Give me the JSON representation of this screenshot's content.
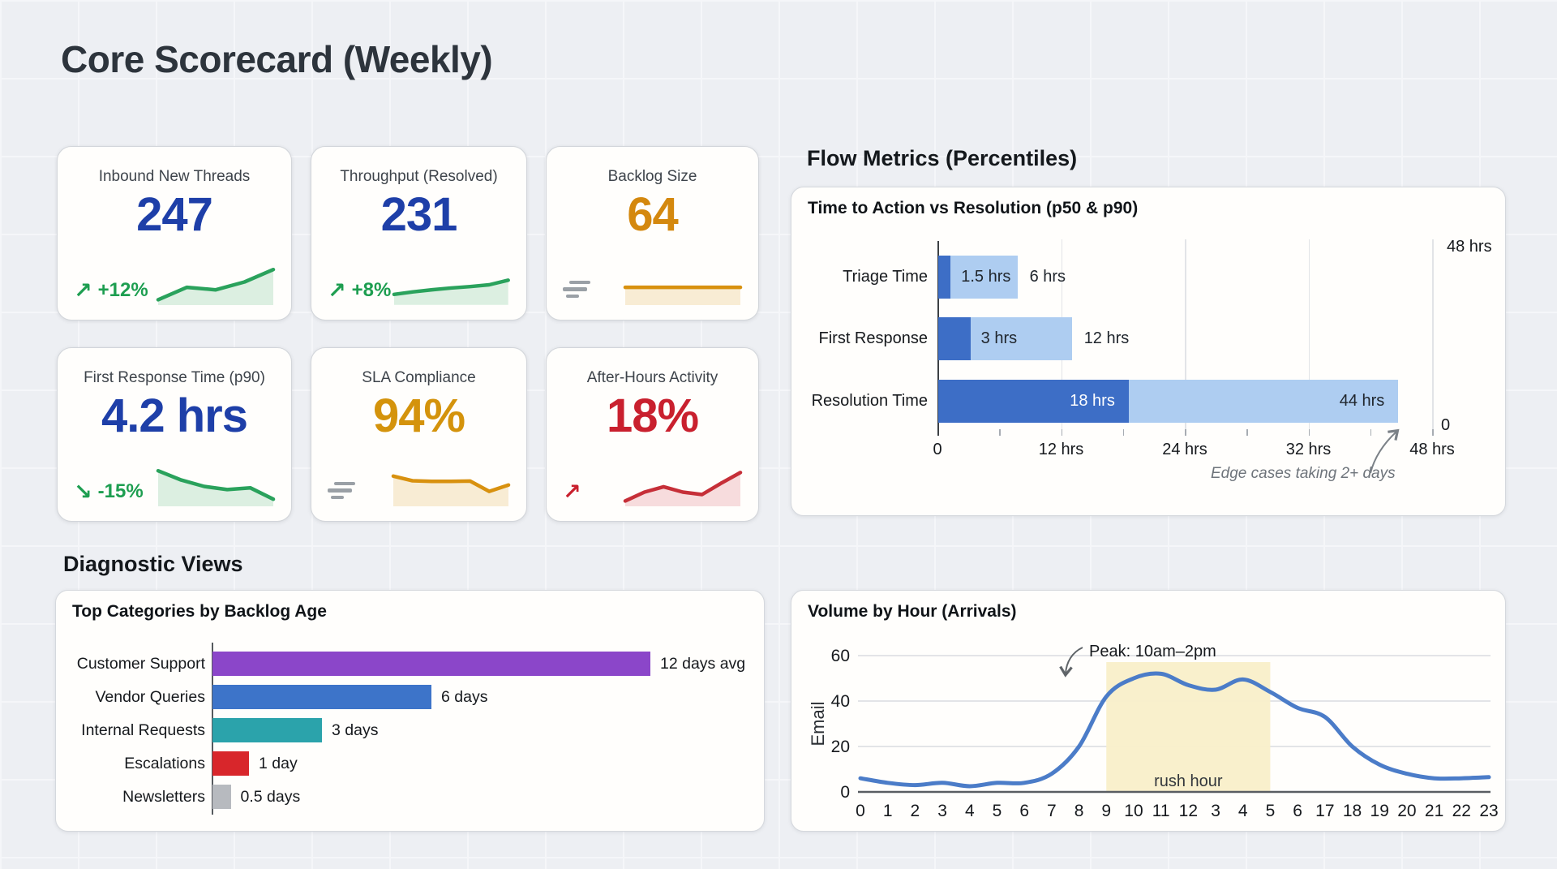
{
  "page": {
    "title": "Core Scorecard (Weekly)"
  },
  "sections": {
    "flow_heading": "Flow Metrics (Percentiles)",
    "diagnostic_heading": "Diagnostic Views"
  },
  "kpi_cards": [
    {
      "label": "Inbound New Threads",
      "value": "247",
      "value_color": "#1e3fa8",
      "trend": {
        "type": "up",
        "icon_char": "↗",
        "label": "+12%",
        "color": "#1d9e50"
      },
      "spark": {
        "color": "#2aa25c",
        "fill": "#dcefe1",
        "values": [
          1.5,
          5,
          4.3,
          6.5,
          10
        ]
      }
    },
    {
      "label": "Throughput (Resolved)",
      "value": "231",
      "value_color": "#1e3fa8",
      "trend": {
        "type": "up",
        "icon_char": "↗",
        "label": "+8%",
        "color": "#1d9e50"
      },
      "spark": {
        "color": "#2aa25c",
        "fill": "#dcefe1",
        "values": [
          3,
          3.7,
          4.3,
          4.8,
          5.2,
          5.7,
          7
        ]
      }
    },
    {
      "label": "Backlog Size",
      "value": "64",
      "value_color": "#d4880e",
      "trend": {
        "type": "flat",
        "icon_char": "",
        "label": "",
        "color": "#9aa0a6"
      },
      "spark": {
        "color": "#d8910f",
        "fill": "#f8ecd4",
        "values": [
          5,
          5,
          5,
          5,
          5
        ]
      }
    },
    {
      "label": "First Response Time (p90)",
      "value": "4.2 hrs",
      "value_color": "#1e3fa8",
      "trend": {
        "type": "down",
        "icon_char": "↘",
        "label": "-15%",
        "color": "#1d9e50"
      },
      "spark": {
        "color": "#2aa25c",
        "fill": "#dcefe1",
        "values": [
          10,
          7.4,
          5.6,
          4.7,
          5.2,
          2
        ]
      }
    },
    {
      "label": "SLA Compliance",
      "value": "94%",
      "value_color": "#d4930c",
      "trend": {
        "type": "flat",
        "icon_char": "",
        "label": "",
        "color": "#9aa0a6"
      },
      "spark": {
        "color": "#d8910f",
        "fill": "#f8ecd4",
        "values": [
          8.5,
          7.2,
          7,
          7,
          7.1,
          4.2,
          6
        ]
      }
    },
    {
      "label": "After-Hours Activity",
      "value": "18%",
      "value_color": "#c9202e",
      "trend": {
        "type": "up",
        "icon_char": "↗",
        "label": "",
        "color": "#c9202e"
      },
      "spark": {
        "color": "#c62f38",
        "fill": "#f7dcdd",
        "values": [
          1.5,
          4,
          5.5,
          4,
          3.3,
          6.5,
          9.5
        ]
      }
    }
  ],
  "chart_data": [
    {
      "id": "flow_percentiles",
      "type": "bar",
      "orientation": "horizontal",
      "title": "Time to Action vs Resolution (p50 & p90)",
      "categories": [
        "Triage Time",
        "First Response",
        "Resolution Time"
      ],
      "series": [
        {
          "name": "p50",
          "values_hrs": [
            1.5,
            3,
            18
          ],
          "color": "#3d6ec6"
        },
        {
          "name": "p90",
          "values_hrs": [
            6,
            12,
            44
          ],
          "color": "#aecdf1"
        }
      ],
      "bar_pcts": {
        "p50": [
          2.5,
          6.5,
          38.5
        ],
        "p90": [
          16,
          27,
          93
        ]
      },
      "value_labels": {
        "p50": [
          "1.5 hrs",
          "3 hrs",
          "18 hrs"
        ],
        "p90": [
          "6 hrs",
          "12 hrs",
          "44 hrs"
        ]
      },
      "x_ticks": [
        "0",
        "12 hrs",
        "24 hrs",
        "32 hrs",
        "48 hrs"
      ],
      "extra_labels": {
        "top_right": "48 hrs",
        "right_zero": "0"
      },
      "annotation": "Edge cases taking 2+ days",
      "xlim_hrs": [
        0,
        48
      ],
      "grid": true,
      "legend": "none"
    },
    {
      "id": "backlog_age",
      "type": "bar",
      "orientation": "horizontal",
      "title": "Top Categories by Backlog Age",
      "categories": [
        "Customer Support",
        "Vendor Queries",
        "Internal Requests",
        "Escalations",
        "Newsletters"
      ],
      "values_days": [
        12,
        6,
        3,
        1,
        0.5
      ],
      "value_labels": [
        "12 days avg",
        "6 days",
        "3 days",
        "1 day",
        "0.5 days"
      ],
      "colors": [
        "#8b46c9",
        "#3d74c9",
        "#2ba3ab",
        "#d8262b",
        "#b7babf"
      ],
      "xlim_days": [
        0,
        13.3
      ],
      "grid": false,
      "legend": "none"
    },
    {
      "id": "volume_by_hour",
      "type": "line",
      "title": "Volume by Hour (Arrivals)",
      "x_labels": [
        "0",
        "1",
        "2",
        "3",
        "4",
        "5",
        "6",
        "7",
        "8",
        "9",
        "10",
        "11",
        "12",
        "3",
        "4",
        "5",
        "6",
        "17",
        "18",
        "19",
        "20",
        "21",
        "22",
        "23"
      ],
      "values": [
        6,
        4,
        3,
        4,
        2.5,
        4,
        4,
        8,
        20,
        42,
        50,
        52,
        47,
        45,
        49.5,
        44,
        37,
        33,
        20,
        12,
        8,
        6,
        6,
        6.5
      ],
      "ylabel": "Email",
      "y_ticks": [
        0,
        20,
        40,
        60
      ],
      "ylim": [
        0,
        60
      ],
      "line_color": "#4b7cc8",
      "band": {
        "from_idx": 9,
        "to_idx": 15,
        "label": "rush hour",
        "color": "#f9efc9"
      },
      "annotation": {
        "text": "Peak: 10am–2pm"
      },
      "grid": true,
      "legend": "none"
    }
  ]
}
